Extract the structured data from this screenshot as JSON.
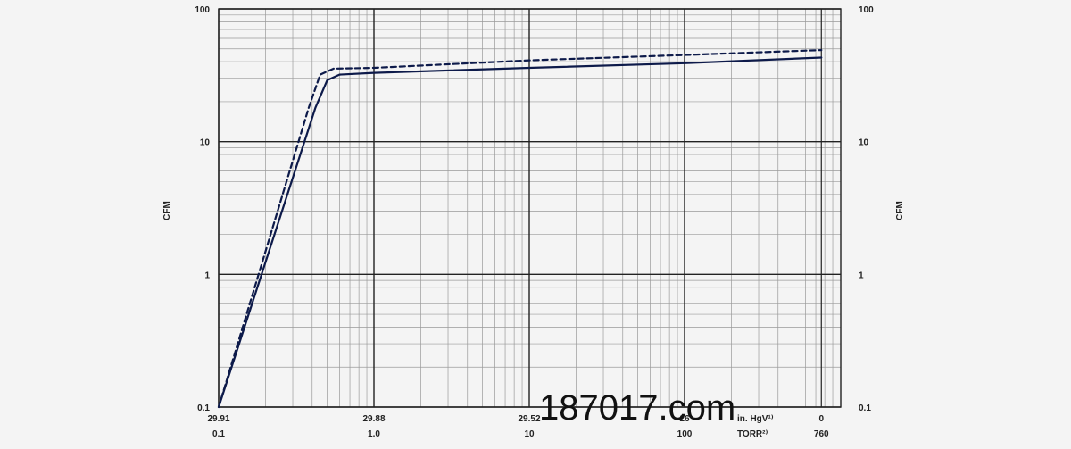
{
  "chart_data": {
    "type": "line",
    "scale": {
      "x": "log",
      "y": "log"
    },
    "x_unit_primary": "TORR",
    "xlim": [
      0.1,
      900
    ],
    "ylim": [
      0.1,
      100
    ],
    "ylabel": "CFM",
    "grid": true,
    "y_ticks": [
      "100",
      "10",
      "1",
      "0.1"
    ],
    "y_tick_values": [
      100,
      10,
      1,
      0.1
    ],
    "x_ticks": [
      {
        "value": 0.1,
        "top": "29.91",
        "bottom": "0.1"
      },
      {
        "value": 1,
        "top": "29.88",
        "bottom": "1.0"
      },
      {
        "value": 10,
        "top": "29.52",
        "bottom": "10"
      },
      {
        "value": 100,
        "top": "26",
        "bottom": "100"
      },
      {
        "value": 760,
        "top": "0",
        "bottom": "760"
      }
    ],
    "x_unit_labels": {
      "top": "in. HgV¹⁾",
      "bottom": "TORR²⁾"
    },
    "series": [
      {
        "style": "solid",
        "points": [
          [
            0.1,
            0.1
          ],
          [
            0.42,
            18
          ],
          [
            0.5,
            29
          ],
          [
            0.6,
            32
          ],
          [
            1,
            33
          ],
          [
            10,
            36
          ],
          [
            100,
            39
          ],
          [
            760,
            43
          ]
        ]
      },
      {
        "style": "dashed",
        "points": [
          [
            0.1,
            0.1
          ],
          [
            0.38,
            18
          ],
          [
            0.45,
            32
          ],
          [
            0.55,
            35.5
          ],
          [
            1,
            36
          ],
          [
            10,
            41
          ],
          [
            100,
            45
          ],
          [
            760,
            49
          ]
        ]
      }
    ],
    "watermark": "187017.com"
  }
}
